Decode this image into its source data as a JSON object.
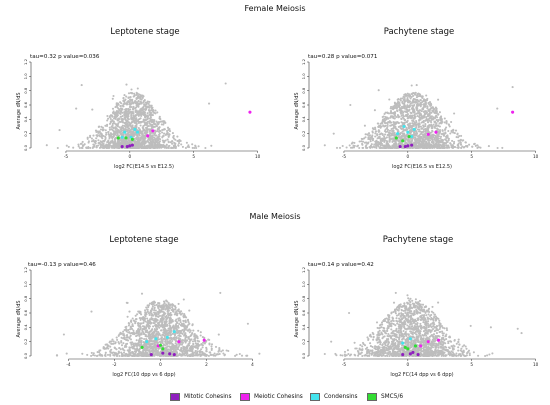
{
  "sections": {
    "female": "Female Meiosis",
    "male": "Male Meiosis"
  },
  "legend": [
    {
      "label": "Mitotic Cohesins",
      "color": "#8f1fbf"
    },
    {
      "label": "Meiotic Cohesins",
      "color": "#ee22ee"
    },
    {
      "label": "Condensins",
      "color": "#44e4ee"
    },
    {
      "label": "SMC5/6",
      "color": "#33dd33"
    }
  ],
  "colors": {
    "background_genes": "#bdbdbd"
  },
  "chart_data": [
    {
      "type": "scatter",
      "title": "Leptotene stage",
      "annotation": "tau=0.32 p value=0.036",
      "xlabel": "log2 FC(E14.5 vs E12.5)",
      "ylabel": "Average dN/dS",
      "xlim": [
        -7.5,
        10.5
      ],
      "ylim": [
        0,
        1.2
      ],
      "xticks": [
        -5,
        0,
        5,
        10
      ],
      "yticks": [
        "0.0",
        "0.2",
        "0.4",
        "0.6",
        "0.8",
        "1.0",
        "1.2"
      ],
      "cloud": {
        "x_center": 0.3,
        "x_spread": 1.6,
        "x_range": [
          -6.5,
          9
        ]
      },
      "outliers": [
        {
          "x": -5.5,
          "y": 0.25
        },
        {
          "x": 6.2,
          "y": 0.62
        },
        {
          "x": 7.5,
          "y": 0.9
        },
        {
          "x": -4.2,
          "y": 0.55
        }
      ],
      "series": [
        {
          "name": "Mitotic Cohesins",
          "points": [
            {
              "x": -0.6,
              "y": 0.02
            },
            {
              "x": -0.2,
              "y": 0.02
            },
            {
              "x": 0.2,
              "y": 0.04
            },
            {
              "x": 0.0,
              "y": 0.03
            }
          ]
        },
        {
          "name": "Meiotic Cohesins",
          "points": [
            {
              "x": 1.4,
              "y": 0.17
            },
            {
              "x": 1.8,
              "y": 0.24
            },
            {
              "x": 9.4,
              "y": 0.5
            }
          ]
        },
        {
          "name": "Condensins",
          "points": [
            {
              "x": -0.6,
              "y": 0.15
            },
            {
              "x": 0.1,
              "y": 0.15
            },
            {
              "x": 0.6,
              "y": 0.22
            },
            {
              "x": -0.4,
              "y": 0.22
            },
            {
              "x": 0.4,
              "y": 0.26
            }
          ]
        },
        {
          "name": "SMC5/6",
          "points": [
            {
              "x": -0.9,
              "y": 0.14
            },
            {
              "x": -0.3,
              "y": 0.14
            },
            {
              "x": 0.2,
              "y": 0.12
            }
          ]
        }
      ]
    },
    {
      "type": "scatter",
      "title": "Pachytene stage",
      "annotation": "tau=0.28 p value=0.071",
      "xlabel": "log2 FC(E16.5 vs E12.5)",
      "ylabel": "Average dN/dS",
      "xlim": [
        -7.5,
        10.5
      ],
      "ylim": [
        0,
        1.2
      ],
      "xticks": [
        -5,
        0,
        5,
        10
      ],
      "yticks": [
        "0.0",
        "0.2",
        "0.4",
        "0.6",
        "0.8",
        "1.0",
        "1.2"
      ],
      "cloud": {
        "x_center": 0.4,
        "x_spread": 1.8,
        "x_range": [
          -6.5,
          9
        ]
      },
      "outliers": [
        {
          "x": -5.8,
          "y": 0.2
        },
        {
          "x": 7.0,
          "y": 0.55
        },
        {
          "x": 8.2,
          "y": 0.85
        },
        {
          "x": -4.5,
          "y": 0.6
        }
      ],
      "series": [
        {
          "name": "Mitotic Cohesins",
          "points": [
            {
              "x": -0.6,
              "y": 0.02
            },
            {
              "x": -0.2,
              "y": 0.02
            },
            {
              "x": 0.3,
              "y": 0.04
            },
            {
              "x": 0.0,
              "y": 0.03
            }
          ]
        },
        {
          "name": "Meiotic Cohesins",
          "points": [
            {
              "x": 1.6,
              "y": 0.19
            },
            {
              "x": 2.2,
              "y": 0.22
            },
            {
              "x": 8.2,
              "y": 0.5
            }
          ]
        },
        {
          "name": "Condensins",
          "points": [
            {
              "x": -0.8,
              "y": 0.2
            },
            {
              "x": 0.0,
              "y": 0.22
            },
            {
              "x": 0.5,
              "y": 0.26
            },
            {
              "x": -0.3,
              "y": 0.3
            },
            {
              "x": 0.3,
              "y": 0.16
            }
          ]
        },
        {
          "name": "SMC5/6",
          "points": [
            {
              "x": -0.9,
              "y": 0.14
            },
            {
              "x": -0.4,
              "y": 0.1
            },
            {
              "x": 0.1,
              "y": 0.16
            }
          ]
        }
      ]
    },
    {
      "type": "scatter",
      "title": "Leptotene stage",
      "annotation": "tau=-0.13 p value=0.46",
      "xlabel": "log2 FC(10 dpp vs 6 dpp)",
      "ylabel": "Average dN/dS",
      "xlim": [
        -5.5,
        4.5
      ],
      "ylim": [
        0,
        1.2
      ],
      "xticks": [
        -4,
        -2,
        0,
        2,
        4
      ],
      "yticks": [
        "0.0",
        "0.2",
        "0.4",
        "0.6",
        "0.8",
        "1.0",
        "1.2"
      ],
      "cloud": {
        "x_center": 0.0,
        "x_spread": 1.1,
        "x_range": [
          -4.5,
          4.3
        ]
      },
      "outliers": [
        {
          "x": -4.2,
          "y": 0.3
        },
        {
          "x": 3.8,
          "y": 0.45
        },
        {
          "x": 2.6,
          "y": 0.88
        },
        {
          "x": -3.0,
          "y": 0.62
        }
      ],
      "series": [
        {
          "name": "Mitotic Cohesins",
          "points": [
            {
              "x": -0.4,
              "y": 0.02
            },
            {
              "x": 0.1,
              "y": 0.04
            },
            {
              "x": 0.4,
              "y": 0.03
            },
            {
              "x": 0.6,
              "y": 0.02
            }
          ]
        },
        {
          "name": "Meiotic Cohesins",
          "points": [
            {
              "x": -0.1,
              "y": 0.14
            },
            {
              "x": 0.8,
              "y": 0.2
            },
            {
              "x": 1.9,
              "y": 0.22
            }
          ]
        },
        {
          "name": "Condensins",
          "points": [
            {
              "x": -0.6,
              "y": 0.2
            },
            {
              "x": 0.3,
              "y": 0.26
            },
            {
              "x": 0.6,
              "y": 0.34
            },
            {
              "x": -0.2,
              "y": 0.24
            }
          ]
        },
        {
          "name": "SMC5/6",
          "points": [
            {
              "x": 0.0,
              "y": 0.15
            },
            {
              "x": 0.1,
              "y": 0.1
            },
            {
              "x": -0.8,
              "y": 0.12
            }
          ]
        }
      ]
    },
    {
      "type": "scatter",
      "title": "Pachytene stage",
      "annotation": "tau=0.14 p value=0.42",
      "xlabel": "log2 FC(14 dpp vs 6 dpp)",
      "ylabel": "Average dN/dS",
      "xlim": [
        -7.5,
        10.5
      ],
      "ylim": [
        0,
        1.2
      ],
      "xticks": [
        -5,
        0,
        5,
        10
      ],
      "yticks": [
        "0.0",
        "0.2",
        "0.4",
        "0.6",
        "0.8",
        "1.0",
        "1.2"
      ],
      "cloud": {
        "x_center": 0.3,
        "x_spread": 1.9,
        "x_range": [
          -6.5,
          8.5
        ]
      },
      "outliers": [
        {
          "x": -6.0,
          "y": 0.2
        },
        {
          "x": 6.5,
          "y": 0.4
        },
        {
          "x": 8.6,
          "y": 0.38
        },
        {
          "x": 8.9,
          "y": 0.32
        },
        {
          "x": -4.6,
          "y": 0.6
        }
      ],
      "series": [
        {
          "name": "Mitotic Cohesins",
          "points": [
            {
              "x": -0.4,
              "y": 0.02
            },
            {
              "x": 0.2,
              "y": 0.03
            },
            {
              "x": 0.8,
              "y": 0.02
            },
            {
              "x": 0.4,
              "y": 0.05
            }
          ]
        },
        {
          "name": "Meiotic Cohesins",
          "points": [
            {
              "x": 1.0,
              "y": 0.14
            },
            {
              "x": 2.4,
              "y": 0.22
            },
            {
              "x": 1.6,
              "y": 0.2
            }
          ]
        },
        {
          "name": "Condensins",
          "points": [
            {
              "x": 0.2,
              "y": 0.24
            },
            {
              "x": -0.4,
              "y": 0.18
            },
            {
              "x": 0.6,
              "y": 0.14
            }
          ]
        },
        {
          "name": "SMC5/6",
          "points": [
            {
              "x": 0.6,
              "y": 0.14
            },
            {
              "x": 0.0,
              "y": 0.1
            },
            {
              "x": -0.2,
              "y": 0.12
            }
          ]
        }
      ]
    }
  ]
}
